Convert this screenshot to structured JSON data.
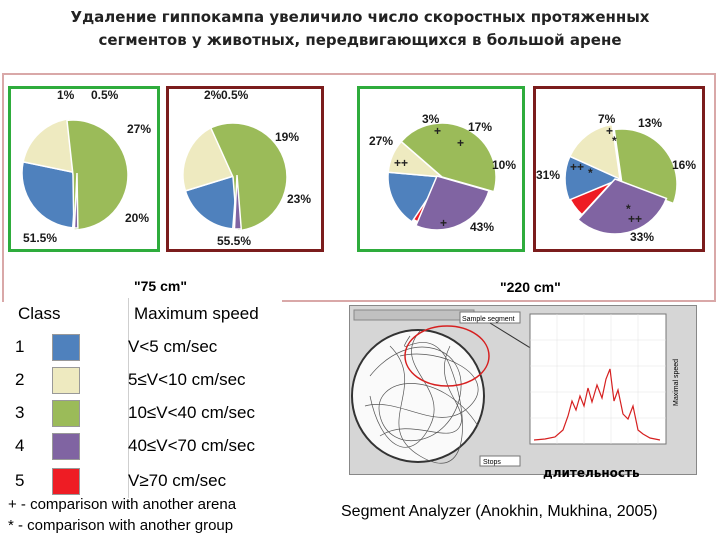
{
  "title_line1": "Удаление гиппокампа увеличило число скоростных протяженных",
  "title_line2": "сегментов у животных, передвигающихся в большой арене",
  "arena_labels": {
    "small": "\"75 cm\"",
    "large": "\"220 cm\""
  },
  "colors": {
    "1": "#4f81bd",
    "2": "#eeeac0",
    "3": "#9bbb59",
    "4": "#8064a2",
    "5": "#ee1c24",
    "green_frame": "#2eac3c",
    "red_frame": "#7b1c1c"
  },
  "chart_data": [
    {
      "type": "pie",
      "arena": "75 cm",
      "frame": "green",
      "slices": [
        {
          "class": 1,
          "value": 27,
          "label": "27%"
        },
        {
          "class": 2,
          "value": 20,
          "label": "20%"
        },
        {
          "class": 3,
          "value": 51.5,
          "label": "51.5%"
        },
        {
          "class": 4,
          "value": 1,
          "label": "1%"
        },
        {
          "class": 5,
          "value": 0.5,
          "label": "0.5%"
        }
      ]
    },
    {
      "type": "pie",
      "arena": "75 cm",
      "frame": "red",
      "slices": [
        {
          "class": 1,
          "value": 19,
          "label": "19%"
        },
        {
          "class": 2,
          "value": 23,
          "label": "23%"
        },
        {
          "class": 3,
          "value": 55.5,
          "label": "55.5%"
        },
        {
          "class": 4,
          "value": 2,
          "label": "2%"
        },
        {
          "class": 5,
          "value": 0.5,
          "label": "0.5%"
        }
      ]
    },
    {
      "type": "pie",
      "arena": "220 cm",
      "frame": "green",
      "slices": [
        {
          "class": 1,
          "value": 17,
          "label": "17%"
        },
        {
          "class": 2,
          "value": 10,
          "label": "10%"
        },
        {
          "class": 3,
          "value": 43,
          "label": "43%"
        },
        {
          "class": 4,
          "value": 27,
          "label": "27%"
        },
        {
          "class": 5,
          "value": 3,
          "label": "3%"
        }
      ]
    },
    {
      "type": "pie",
      "arena": "220 cm",
      "frame": "red",
      "slices": [
        {
          "class": 1,
          "value": 13,
          "label": "13%"
        },
        {
          "class": 2,
          "value": 16,
          "label": "16%"
        },
        {
          "class": 3,
          "value": 33,
          "label": "33%"
        },
        {
          "class": 4,
          "value": 31,
          "label": "31%"
        },
        {
          "class": 5,
          "value": 7,
          "label": "7%"
        }
      ]
    }
  ],
  "marks": {
    "plus": "+",
    "double_plus": "++",
    "star": "*"
  },
  "legend": {
    "header_class": "Class",
    "header_speed": "Maximum speed",
    "rows": [
      {
        "cls": "1",
        "range": "V<5 cm/sec"
      },
      {
        "cls": "2",
        "range": "5≤V<10 cm/sec"
      },
      {
        "cls": "3",
        "range": "10≤V<40  cm/sec"
      },
      {
        "cls": "4",
        "range": "40≤V<70  cm/sec"
      },
      {
        "cls": "5",
        "range": "V≥70 cm/sec"
      }
    ]
  },
  "notes": {
    "plus": "+ - comparison with another arena",
    "star": "* - comparison with another group"
  },
  "analyzer": {
    "sample_segment": "Sample segment",
    "stops": "Stops",
    "max_speed": "Maximal speed",
    "duration": "длительность"
  },
  "citation": "Segment Analyzer (Anokhin, Mukhina, 2005)"
}
